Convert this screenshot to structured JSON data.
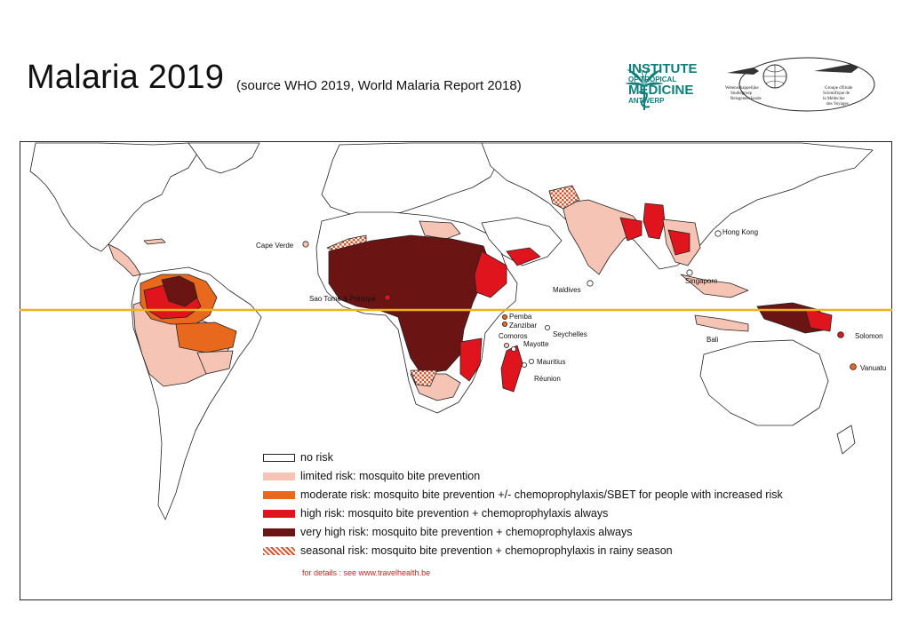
{
  "header": {
    "title": "Malaria 2019",
    "subtitle": "(source WHO 2019, World Malaria Report 2018)",
    "logo_itm": {
      "line1": "INSTITUTE",
      "line2": "OF TROPICAL",
      "line3": "MEDICINE",
      "line4": "ANTWERP"
    },
    "logo_society": "Wetenschappelijke Studiegroep Reisgeneeskunde / Groupe d'Etude Scientifique de la Médecine des Voyages"
  },
  "colors": {
    "no_risk": "#ffffff",
    "limited": "#f6c4b4",
    "moderate": "#e8691d",
    "high": "#e0141d",
    "very_high": "#6b1414",
    "seasonal": "#d9542a",
    "equator": "#f0b21a",
    "water": "#b9d8ee"
  },
  "legend": [
    {
      "key": "no_risk",
      "label": "no risk"
    },
    {
      "key": "limited",
      "label": "limited risk: mosquito bite prevention"
    },
    {
      "key": "moderate",
      "label": "moderate risk: mosquito bite prevention +/- chemoprophylaxis/SBET for people with increased risk"
    },
    {
      "key": "high",
      "label": "high risk: mosquito bite prevention + chemoprophylaxis always"
    },
    {
      "key": "very_high",
      "label": "very high risk: mosquito bite prevention + chemoprophylaxis always"
    },
    {
      "key": "seasonal",
      "label": "seasonal risk: mosquito bite prevention + chemoprophylaxis in rainy season"
    }
  ],
  "details": "for details : see www.travelhealth.be",
  "places": {
    "cape_verde": "Cape Verde",
    "sao_tome": "Sao Tome & Principe",
    "pemba": "Pemba",
    "zanzibar": "Zanzibar",
    "comoros": "Comoros",
    "mayotte": "Mayotte",
    "seychelles": "Seychelles",
    "mauritius": "Mauritius",
    "reunion": "Réunion",
    "maldives": "Maldives",
    "hong_kong": "Hong Kong",
    "singapore": "Singapore",
    "bali": "Bali",
    "solomon": "Solomon",
    "vanuatu": "Vanuatu"
  }
}
